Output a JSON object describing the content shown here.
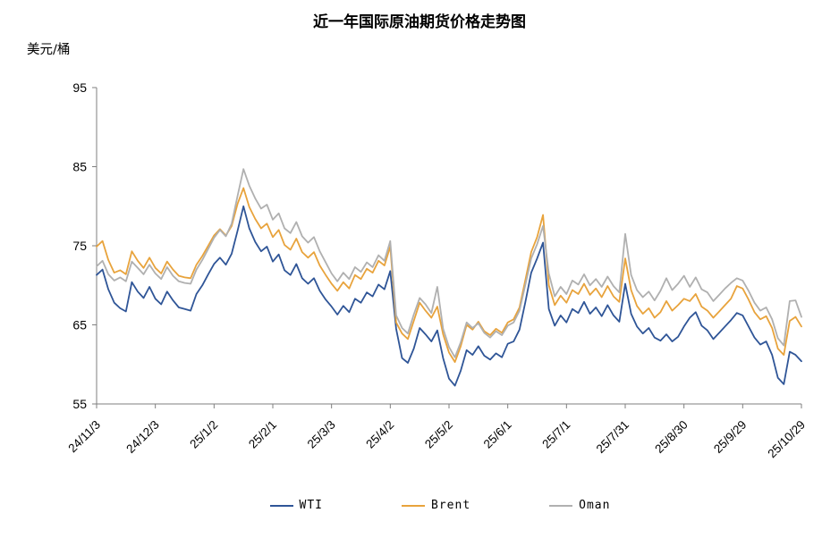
{
  "title": "近一年国际原油期货价格走势图",
  "y_unit_label": "美元/桶",
  "colors": {
    "wti": "#2F5597",
    "brent": "#E8A33C",
    "oman": "#B0B0B0",
    "axis": "#7F7F7F",
    "text": "#000000"
  },
  "legend": {
    "items": [
      {
        "label": "WTI",
        "color": "#2F5597"
      },
      {
        "label": "Brent",
        "color": "#E8A33C"
      },
      {
        "label": "Oman",
        "color": "#B0B0B0"
      }
    ]
  },
  "chart_data": {
    "type": "line",
    "title": "近一年国际原油期货价格走势图",
    "ylabel": "美元/桶",
    "xlabel": "",
    "grid": false,
    "legend_position": "bottom",
    "ylim": [
      55,
      95
    ],
    "yticks": [
      55,
      65,
      75,
      85,
      95
    ],
    "x_tick_days": [
      0,
      30,
      60,
      90,
      120,
      150,
      180,
      210,
      240,
      270,
      300,
      330,
      360
    ],
    "x_tick_labels": [
      "24/11/3",
      "24/12/3",
      "25/1/2",
      "25/2/1",
      "25/3/3",
      "25/4/2",
      "25/5/2",
      "25/6/1",
      "25/7/1",
      "25/7/31",
      "25/8/30",
      "25/9/29",
      "25/10/29"
    ],
    "x_start_day": 0,
    "x_step_days": 3,
    "series": [
      {
        "name": "WTI",
        "color": "#2F5597",
        "values": [
          71.3,
          72.0,
          69.5,
          67.8,
          67.1,
          66.7,
          70.4,
          69.2,
          68.4,
          69.8,
          68.3,
          67.6,
          69.2,
          68.1,
          67.2,
          67.0,
          66.8,
          68.9,
          70.0,
          71.4,
          72.7,
          73.5,
          72.6,
          74.0,
          76.9,
          80.0,
          77.2,
          75.5,
          74.3,
          74.9,
          73.0,
          73.9,
          71.9,
          71.3,
          72.7,
          70.9,
          70.2,
          70.9,
          69.3,
          68.2,
          67.3,
          66.3,
          67.4,
          66.6,
          68.3,
          67.8,
          69.1,
          68.6,
          70.1,
          69.5,
          71.8,
          64.5,
          60.8,
          60.2,
          62.0,
          64.6,
          63.8,
          62.9,
          64.3,
          60.8,
          58.2,
          57.3,
          59.2,
          61.8,
          61.2,
          62.3,
          61.1,
          60.6,
          61.4,
          60.9,
          62.6,
          62.9,
          64.4,
          67.9,
          71.6,
          73.4,
          75.4,
          67.0,
          64.9,
          66.2,
          65.3,
          67.0,
          66.5,
          67.9,
          66.4,
          67.2,
          66.1,
          67.5,
          66.2,
          65.4,
          70.2,
          66.4,
          64.8,
          63.9,
          64.6,
          63.4,
          63.0,
          63.8,
          62.9,
          63.5,
          64.8,
          65.9,
          66.6,
          64.9,
          64.3,
          63.2,
          64.0,
          64.8,
          65.6,
          66.5,
          66.2,
          64.8,
          63.4,
          62.5,
          62.9,
          61.2,
          58.3,
          57.5,
          61.6,
          61.2,
          60.4
        ]
      },
      {
        "name": "Brent",
        "color": "#E8A33C",
        "values": [
          74.9,
          75.6,
          73.2,
          71.6,
          71.9,
          71.4,
          74.3,
          73.1,
          72.2,
          73.5,
          72.2,
          71.5,
          73.0,
          72.0,
          71.2,
          71.0,
          70.9,
          72.6,
          73.7,
          75.0,
          76.3,
          77.1,
          76.3,
          77.5,
          80.3,
          82.3,
          79.9,
          78.4,
          77.2,
          77.8,
          76.1,
          77.0,
          75.1,
          74.5,
          75.9,
          74.2,
          73.5,
          74.2,
          72.5,
          71.3,
          70.2,
          69.3,
          70.4,
          69.6,
          71.3,
          70.8,
          72.1,
          71.6,
          73.1,
          72.5,
          74.9,
          65.3,
          63.9,
          63.2,
          65.5,
          67.8,
          66.8,
          65.9,
          67.3,
          63.8,
          61.5,
          60.3,
          62.3,
          65.0,
          64.4,
          65.4,
          64.2,
          63.7,
          64.5,
          64.0,
          65.3,
          65.7,
          67.2,
          70.7,
          74.2,
          76.1,
          78.9,
          70.0,
          67.5,
          68.7,
          67.8,
          69.4,
          68.9,
          70.2,
          68.8,
          69.6,
          68.5,
          69.9,
          68.6,
          67.9,
          73.4,
          69.4,
          67.4,
          66.4,
          67.1,
          65.9,
          66.6,
          68.0,
          66.8,
          67.5,
          68.3,
          68.0,
          68.9,
          67.3,
          66.8,
          65.9,
          66.7,
          67.5,
          68.3,
          69.9,
          69.6,
          68.2,
          66.6,
          65.7,
          66.1,
          64.6,
          62.0,
          61.2,
          65.5,
          66.0,
          64.8
        ]
      },
      {
        "name": "Oman",
        "color": "#B0B0B0",
        "values": [
          72.4,
          73.1,
          71.4,
          70.6,
          71.0,
          70.5,
          73.0,
          72.2,
          71.4,
          72.6,
          71.5,
          70.8,
          72.3,
          71.2,
          70.5,
          70.3,
          70.2,
          72.0,
          73.2,
          74.6,
          76.0,
          77.0,
          76.2,
          77.8,
          81.3,
          84.7,
          82.6,
          81.0,
          79.7,
          80.2,
          78.3,
          79.1,
          77.2,
          76.6,
          78.0,
          76.2,
          75.4,
          76.1,
          74.3,
          72.9,
          71.5,
          70.5,
          71.6,
          70.8,
          72.3,
          71.7,
          72.9,
          72.3,
          73.8,
          73.1,
          75.6,
          66.2,
          64.6,
          63.9,
          66.3,
          68.4,
          67.6,
          66.5,
          69.8,
          64.5,
          62.2,
          60.9,
          62.8,
          65.3,
          64.6,
          65.2,
          64.0,
          63.4,
          64.2,
          63.7,
          64.9,
          65.3,
          66.8,
          70.1,
          73.4,
          75.2,
          77.5,
          71.5,
          68.6,
          69.8,
          68.9,
          70.6,
          70.1,
          71.4,
          70.0,
          70.8,
          69.8,
          71.1,
          69.9,
          69.1,
          76.5,
          71.3,
          69.4,
          68.5,
          69.2,
          68.1,
          69.3,
          70.9,
          69.4,
          70.2,
          71.2,
          69.8,
          71.0,
          69.5,
          69.1,
          68.0,
          68.8,
          69.6,
          70.3,
          70.9,
          70.6,
          69.3,
          67.8,
          66.8,
          67.2,
          65.7,
          63.3,
          62.4,
          68.0,
          68.1,
          66.0
        ]
      }
    ]
  }
}
